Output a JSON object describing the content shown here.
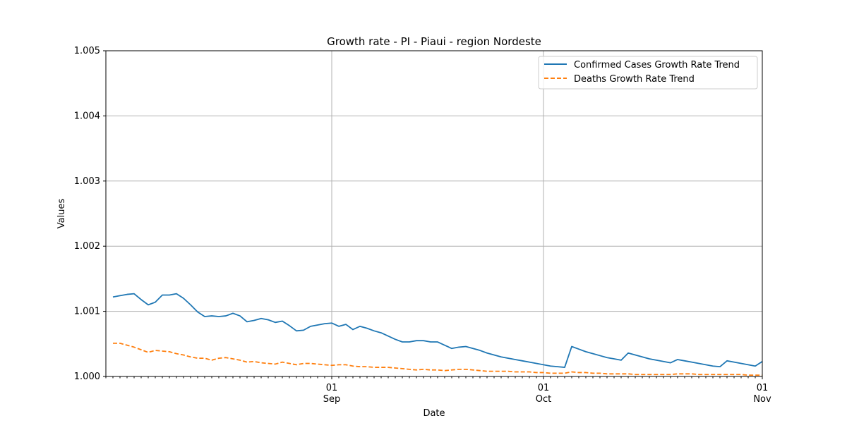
{
  "chart_data": {
    "type": "line",
    "title": "Growth rate - PI - Piaui - region Nordeste",
    "xlabel": "Date",
    "ylabel": "Values",
    "xlim": [
      "2020-07-31",
      "2020-11-01"
    ],
    "ylim": [
      1.0,
      1.005
    ],
    "yticks": [
      1.0,
      1.001,
      1.002,
      1.003,
      1.004,
      1.005
    ],
    "ytick_labels": [
      "1.000",
      "1.001",
      "1.002",
      "1.003",
      "1.004",
      "1.005"
    ],
    "xticks": [
      {
        "date": "2020-09-01",
        "label": "01",
        "sublabel": "Sep"
      },
      {
        "date": "2020-10-01",
        "label": "01",
        "sublabel": "Oct"
      },
      {
        "date": "2020-11-01",
        "label": "01",
        "sublabel": "Nov"
      }
    ],
    "grid": true,
    "legend_position": "top-right",
    "series": [
      {
        "name": "Confirmed Cases Growth Rate Trend",
        "color": "#1f77b4",
        "linestyle": "solid",
        "x": [
          "2020-08-01",
          "2020-08-02",
          "2020-08-03",
          "2020-08-04",
          "2020-08-05",
          "2020-08-06",
          "2020-08-07",
          "2020-08-08",
          "2020-08-09",
          "2020-08-10",
          "2020-08-11",
          "2020-08-12",
          "2020-08-13",
          "2020-08-14",
          "2020-08-15",
          "2020-08-16",
          "2020-08-17",
          "2020-08-18",
          "2020-08-19",
          "2020-08-20",
          "2020-08-21",
          "2020-08-22",
          "2020-08-23",
          "2020-08-24",
          "2020-08-25",
          "2020-08-26",
          "2020-08-27",
          "2020-08-28",
          "2020-08-29",
          "2020-08-30",
          "2020-08-31",
          "2020-09-01",
          "2020-09-02",
          "2020-09-03",
          "2020-09-04",
          "2020-09-05",
          "2020-09-06",
          "2020-09-07",
          "2020-09-08",
          "2020-09-09",
          "2020-09-10",
          "2020-09-11",
          "2020-09-12",
          "2020-09-13",
          "2020-09-14",
          "2020-09-15",
          "2020-09-16",
          "2020-09-17",
          "2020-09-18",
          "2020-09-19",
          "2020-09-20",
          "2020-09-21",
          "2020-09-22",
          "2020-09-23",
          "2020-09-24",
          "2020-09-25",
          "2020-09-26",
          "2020-09-27",
          "2020-09-28",
          "2020-09-29",
          "2020-09-30",
          "2020-10-01",
          "2020-10-02",
          "2020-10-03",
          "2020-10-04",
          "2020-10-05",
          "2020-10-06",
          "2020-10-07",
          "2020-10-08",
          "2020-10-09",
          "2020-10-10",
          "2020-10-11",
          "2020-10-12",
          "2020-10-13",
          "2020-10-14",
          "2020-10-15",
          "2020-10-16",
          "2020-10-17",
          "2020-10-18",
          "2020-10-19",
          "2020-10-20",
          "2020-10-21",
          "2020-10-22",
          "2020-10-23",
          "2020-10-24",
          "2020-10-25",
          "2020-10-26",
          "2020-10-27",
          "2020-10-28",
          "2020-10-29",
          "2020-10-30",
          "2020-10-31",
          "2020-11-01"
        ],
        "y": [
          1.00122,
          1.00124,
          1.00126,
          1.00127,
          1.00118,
          1.0011,
          1.00114,
          1.00125,
          1.00125,
          1.00127,
          1.0012,
          1.0011,
          1.00099,
          1.00092,
          1.00093,
          1.00092,
          1.00093,
          1.00097,
          1.00093,
          1.00084,
          1.00086,
          1.00089,
          1.00087,
          1.00083,
          1.00085,
          1.00078,
          1.0007,
          1.00071,
          1.00077,
          1.00079,
          1.00081,
          1.00082,
          1.00077,
          1.0008,
          1.00072,
          1.00077,
          1.00074,
          1.0007,
          1.00067,
          1.00062,
          1.00057,
          1.00053,
          1.00053,
          1.00055,
          1.00055,
          1.00053,
          1.00053,
          1.00048,
          1.00043,
          1.00045,
          1.00046,
          1.00043,
          1.0004,
          1.00036,
          1.00033,
          1.0003,
          1.00028,
          1.00026,
          1.00024,
          1.00022,
          1.0002,
          1.00018,
          1.00016,
          1.00015,
          1.00014,
          1.00046,
          1.00042,
          1.00038,
          1.00035,
          1.00032,
          1.00029,
          1.00027,
          1.00025,
          1.00036,
          1.00033,
          1.0003,
          1.00027,
          1.00025,
          1.00023,
          1.00021,
          1.00026,
          1.00024,
          1.00022,
          1.0002,
          1.00018,
          1.00016,
          1.00015,
          1.00024,
          1.00022,
          1.0002,
          1.00018,
          1.00016,
          1.00023
        ]
      },
      {
        "name": "Deaths Growth Rate Trend",
        "color": "#ff7f0e",
        "linestyle": "dashed",
        "x": [
          "2020-08-01",
          "2020-08-02",
          "2020-08-03",
          "2020-08-04",
          "2020-08-05",
          "2020-08-06",
          "2020-08-07",
          "2020-08-08",
          "2020-08-09",
          "2020-08-10",
          "2020-08-11",
          "2020-08-12",
          "2020-08-13",
          "2020-08-14",
          "2020-08-15",
          "2020-08-16",
          "2020-08-17",
          "2020-08-18",
          "2020-08-19",
          "2020-08-20",
          "2020-08-21",
          "2020-08-22",
          "2020-08-23",
          "2020-08-24",
          "2020-08-25",
          "2020-08-26",
          "2020-08-27",
          "2020-08-28",
          "2020-08-29",
          "2020-08-30",
          "2020-08-31",
          "2020-09-01",
          "2020-09-02",
          "2020-09-03",
          "2020-09-04",
          "2020-09-05",
          "2020-09-06",
          "2020-09-07",
          "2020-09-08",
          "2020-09-09",
          "2020-09-10",
          "2020-09-11",
          "2020-09-12",
          "2020-09-13",
          "2020-09-14",
          "2020-09-15",
          "2020-09-16",
          "2020-09-17",
          "2020-09-18",
          "2020-09-19",
          "2020-09-20",
          "2020-09-21",
          "2020-09-22",
          "2020-09-23",
          "2020-09-24",
          "2020-09-25",
          "2020-09-26",
          "2020-09-27",
          "2020-09-28",
          "2020-09-29",
          "2020-09-30",
          "2020-10-01",
          "2020-10-02",
          "2020-10-03",
          "2020-10-04",
          "2020-10-05",
          "2020-10-06",
          "2020-10-07",
          "2020-10-08",
          "2020-10-09",
          "2020-10-10",
          "2020-10-11",
          "2020-10-12",
          "2020-10-13",
          "2020-10-14",
          "2020-10-15",
          "2020-10-16",
          "2020-10-17",
          "2020-10-18",
          "2020-10-19",
          "2020-10-20",
          "2020-10-21",
          "2020-10-22",
          "2020-10-23",
          "2020-10-24",
          "2020-10-25",
          "2020-10-26",
          "2020-10-27",
          "2020-10-28",
          "2020-10-29",
          "2020-10-30",
          "2020-10-31",
          "2020-11-01"
        ],
        "y": [
          1.00051,
          1.00051,
          1.00048,
          1.00045,
          1.00041,
          1.00037,
          1.0004,
          1.00039,
          1.00038,
          1.00035,
          1.00033,
          1.0003,
          1.00028,
          1.00028,
          1.00025,
          1.00028,
          1.00029,
          1.00027,
          1.00025,
          1.00022,
          1.00023,
          1.00021,
          1.0002,
          1.00019,
          1.00022,
          1.0002,
          1.00018,
          1.0002,
          1.0002,
          1.00019,
          1.00018,
          1.00017,
          1.00018,
          1.00018,
          1.00016,
          1.00015,
          1.00015,
          1.00014,
          1.00014,
          1.00014,
          1.00013,
          1.00012,
          1.00011,
          1.0001,
          1.00011,
          1.0001,
          1.0001,
          1.00009,
          1.0001,
          1.00011,
          1.00011,
          1.0001,
          1.00009,
          1.00008,
          1.00008,
          1.00008,
          1.00008,
          1.00007,
          1.00007,
          1.00007,
          1.00006,
          1.00006,
          1.00005,
          1.00005,
          1.00005,
          1.00007,
          1.00006,
          1.00006,
          1.00005,
          1.00005,
          1.00004,
          1.00004,
          1.00004,
          1.00004,
          1.00003,
          1.00003,
          1.00003,
          1.00003,
          1.00003,
          1.00003,
          1.00004,
          1.00004,
          1.00004,
          1.00003,
          1.00003,
          1.00003,
          1.00003,
          1.00003,
          1.00003,
          1.00003,
          1.00002,
          1.00002,
          1.00002
        ]
      }
    ]
  }
}
